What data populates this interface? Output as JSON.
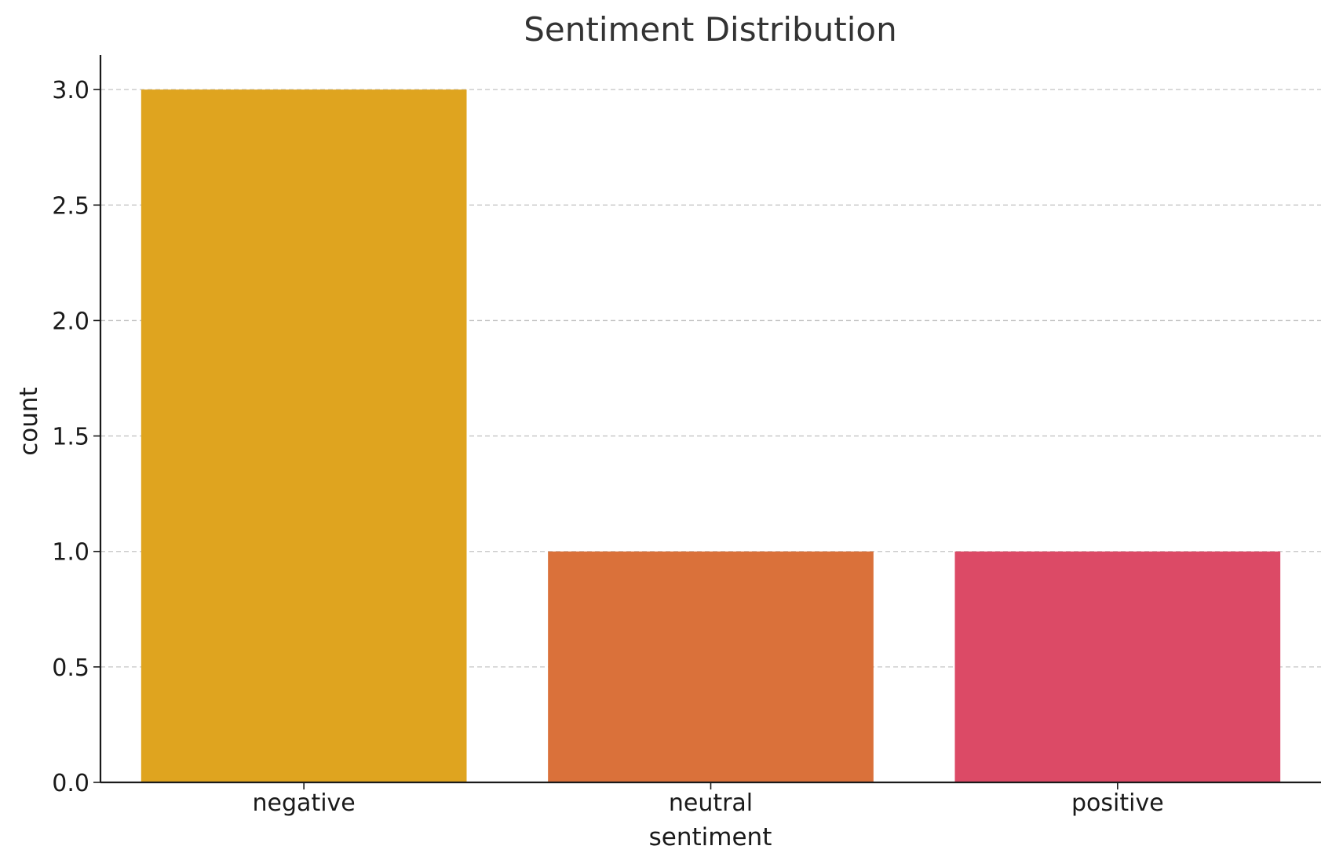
{
  "chart_data": {
    "type": "bar",
    "title": "Sentiment Distribution",
    "xlabel": "sentiment",
    "ylabel": "count",
    "categories": [
      "negative",
      "neutral",
      "positive"
    ],
    "values": [
      3,
      1,
      1
    ],
    "colors": [
      "#DFA41F",
      "#DA713A",
      "#DC4A66"
    ],
    "ylim": [
      0,
      3.15
    ],
    "yticks": [
      0.0,
      0.5,
      1.0,
      1.5,
      2.0,
      2.5,
      3.0
    ],
    "ytick_labels": [
      "0.0",
      "0.5",
      "1.0",
      "1.5",
      "2.0",
      "2.5",
      "3.0"
    ],
    "grid": "y-dashed",
    "legend": "none"
  }
}
